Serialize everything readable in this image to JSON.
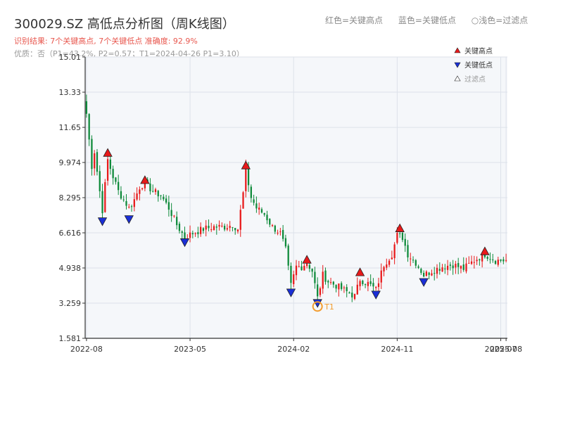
{
  "header": {
    "title": "300029.SZ 高低点分析图（周K线图）",
    "result_line": "识别结果: 7个关键高点, 7个关键低点   准确度: 92.9%",
    "quality_line": "优质：否（P1=43.2%, P2=0.57；T1=2024-04-26 P1=3.10）",
    "legend_red": "红色=关键高点",
    "legend_blue": "蓝色=关键低点",
    "legend_light": "○浅色=过滤点"
  },
  "colors": {
    "up": "#e8191a",
    "down": "#0e8a3a",
    "high_marker": "#e8191a",
    "low_marker": "#1a2fd6",
    "t1": "#f39c2d",
    "axis": "#333333",
    "plot_bg": "#f5f7fa",
    "grid": "#dde2ea"
  },
  "chart_data": {
    "type": "candlestick",
    "ylim": [
      1.581,
      15.01
    ],
    "yticks": [
      "15.01",
      "13.33",
      "11.65",
      "9.974",
      "8.295",
      "6.616",
      "4.938",
      "3.259",
      "1.581"
    ],
    "ytick_values": [
      15.01,
      13.33,
      11.65,
      9.974,
      8.295,
      6.616,
      4.938,
      3.259,
      1.581
    ],
    "xticks": [
      "2022-08",
      "2023-05",
      "2024-02",
      "2024-11",
      "2025-07",
      "2025-08"
    ],
    "xtick_weeks": [
      0,
      39,
      78,
      117,
      156,
      158
    ],
    "legend": {
      "high": "关键高点",
      "low": "关键低点",
      "filtered": "过滤点"
    },
    "t1_label": "T1",
    "key_highs": [
      {
        "week": 8,
        "value": 10.4
      },
      {
        "week": 22,
        "value": 9.1
      },
      {
        "week": 60,
        "value": 9.8
      },
      {
        "week": 83,
        "value": 5.3
      },
      {
        "week": 103,
        "value": 4.7
      },
      {
        "week": 118,
        "value": 6.8
      },
      {
        "week": 150,
        "value": 5.7
      }
    ],
    "key_lows": [
      {
        "week": 6,
        "value": 7.2
      },
      {
        "week": 16,
        "value": 7.3
      },
      {
        "week": 37,
        "value": 6.2
      },
      {
        "week": 77,
        "value": 3.8
      },
      {
        "week": 87,
        "value": 3.3
      },
      {
        "week": 109,
        "value": 3.7
      },
      {
        "week": 127,
        "value": 4.3
      }
    ],
    "t1": {
      "week": 87,
      "value": 3.1
    },
    "series_keypoints": [
      [
        0,
        12.3
      ],
      [
        2,
        9.8
      ],
      [
        3,
        10.5
      ],
      [
        5,
        8.6
      ],
      [
        6,
        7.7
      ],
      [
        8,
        10.1
      ],
      [
        10,
        9.3
      ],
      [
        12,
        8.6
      ],
      [
        14,
        8.2
      ],
      [
        16,
        7.8
      ],
      [
        18,
        8.2
      ],
      [
        20,
        8.8
      ],
      [
        22,
        9.0
      ],
      [
        25,
        8.6
      ],
      [
        28,
        8.4
      ],
      [
        31,
        7.8
      ],
      [
        34,
        7.0
      ],
      [
        37,
        6.4
      ],
      [
        40,
        6.6
      ],
      [
        44,
        6.8
      ],
      [
        48,
        6.9
      ],
      [
        52,
        6.9
      ],
      [
        55,
        7.0
      ],
      [
        57,
        6.8
      ],
      [
        59,
        8.5
      ],
      [
        60,
        9.6
      ],
      [
        62,
        8.3
      ],
      [
        64,
        7.8
      ],
      [
        67,
        7.5
      ],
      [
        70,
        6.9
      ],
      [
        73,
        6.6
      ],
      [
        75,
        5.8
      ],
      [
        76,
        4.9
      ],
      [
        77,
        4.1
      ],
      [
        79,
        5.0
      ],
      [
        81,
        5.0
      ],
      [
        83,
        5.2
      ],
      [
        85,
        4.8
      ],
      [
        87,
        3.5
      ],
      [
        89,
        4.6
      ],
      [
        91,
        4.3
      ],
      [
        94,
        4.1
      ],
      [
        98,
        3.8
      ],
      [
        101,
        3.6
      ],
      [
        103,
        4.4
      ],
      [
        106,
        4.2
      ],
      [
        109,
        3.9
      ],
      [
        112,
        5.1
      ],
      [
        115,
        5.6
      ],
      [
        117,
        6.5
      ],
      [
        119,
        6.4
      ],
      [
        121,
        5.6
      ],
      [
        124,
        5.2
      ],
      [
        127,
        4.6
      ],
      [
        130,
        4.8
      ],
      [
        134,
        5.0
      ],
      [
        138,
        5.1
      ],
      [
        142,
        4.9
      ],
      [
        146,
        5.3
      ],
      [
        150,
        5.6
      ],
      [
        154,
        5.3
      ],
      [
        158,
        5.3
      ]
    ]
  }
}
